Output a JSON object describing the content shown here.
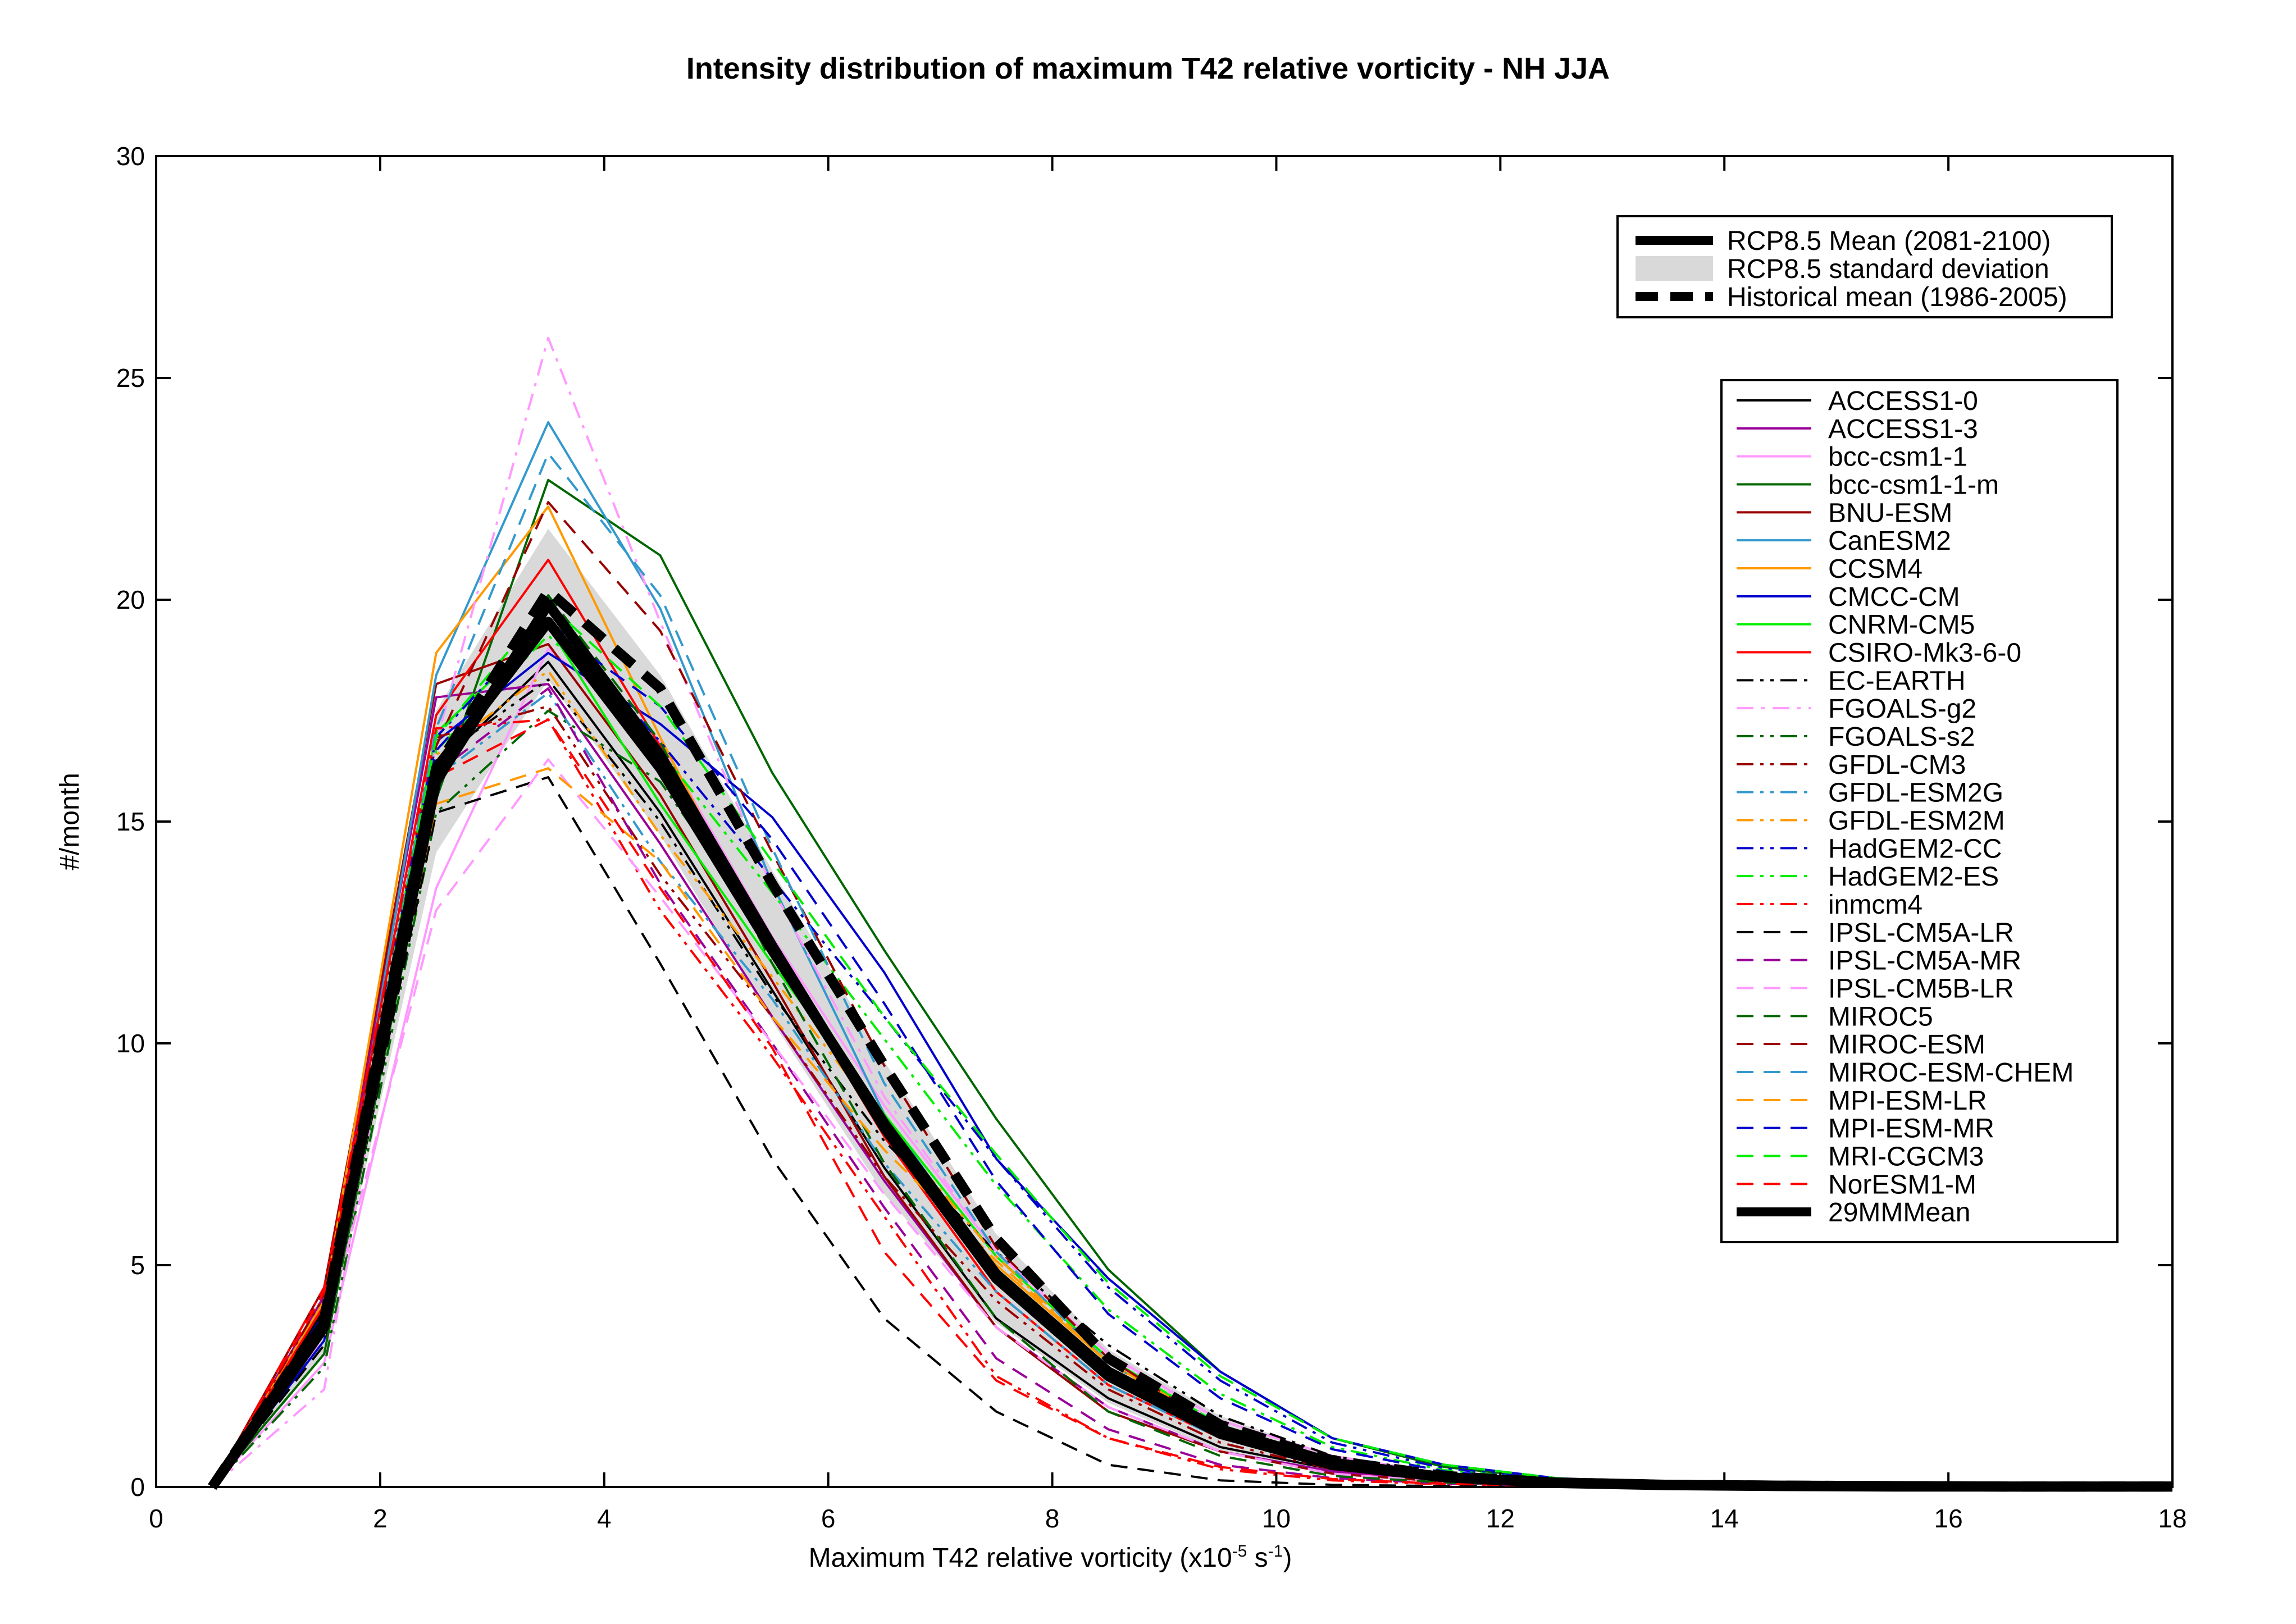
{
  "chart_data": {
    "type": "line",
    "title": "Intensity distribution of maximum T42 relative vorticity - NH JJA",
    "xlabel": {
      "main": "Maximum T42 relative vorticity (x10",
      "exp1": "-5",
      "mid": " s",
      "exp2": "-1",
      "end": ")"
    },
    "ylabel": "#/month",
    "xlim": [
      0,
      18
    ],
    "ylim": [
      0,
      30
    ],
    "xticks": [
      0,
      2,
      4,
      6,
      8,
      10,
      12,
      14,
      16,
      18
    ],
    "yticks": [
      0,
      5,
      10,
      15,
      20,
      25,
      30
    ],
    "grid": false,
    "legend_placement": "top-right",
    "x": [
      0.5,
      1.5,
      2.5,
      3.5,
      4.5,
      5.5,
      6.5,
      7.5,
      8.5,
      9.5,
      10.5,
      11.5,
      12.5,
      13.5,
      14.5,
      15.5,
      16.5,
      17.5,
      18
    ],
    "summary_legend": [
      {
        "name": "RCP8.5 Mean (2081-2100)",
        "kind": "line",
        "color": "#000000",
        "dash": "solid"
      },
      {
        "name": "RCP8.5 standard deviation",
        "kind": "band",
        "color": "#d9d9d9"
      },
      {
        "name": "Historical mean (1986-2005)",
        "kind": "line",
        "color": "#000000",
        "dash": "dashed"
      }
    ],
    "summary": {
      "rcp_mean": [
        0,
        3.7,
        15.9,
        19.9,
        16.5,
        12.2,
        8.1,
        4.7,
        2.5,
        1.2,
        0.5,
        0.22,
        0.1,
        0.05,
        0.03,
        0.02,
        0.01,
        0.01,
        0.01
      ],
      "rcp_sd_upper": [
        0,
        4.4,
        17.5,
        21.6,
        18.3,
        13.9,
        9.6,
        5.7,
        3.1,
        1.6,
        0.7,
        0.32,
        0.15,
        0.07,
        0.04,
        0.03,
        0.02,
        0.01,
        0.01
      ],
      "rcp_sd_lower": [
        0,
        3.0,
        14.3,
        18.2,
        14.7,
        10.5,
        6.6,
        3.7,
        1.9,
        0.8,
        0.3,
        0.12,
        0.05,
        0.03,
        0.02,
        0.01,
        0.0,
        0.0,
        0.0
      ],
      "hist_mean": [
        0,
        3.8,
        16.2,
        20.2,
        18.0,
        13.6,
        9.5,
        5.6,
        2.9,
        1.4,
        0.6,
        0.25,
        0.1,
        0.05,
        0.03,
        0.02,
        0.01,
        0.01,
        0.01
      ]
    },
    "series": [
      {
        "name": "ACCESS1-0",
        "color": "#000000",
        "dash": "solid",
        "values": [
          0,
          4.0,
          16.2,
          18.6,
          15.2,
          11.2,
          7.2,
          3.8,
          2.0,
          0.9,
          0.4,
          0.15,
          0.06,
          0.03,
          0.02,
          0.01,
          0,
          0,
          0
        ]
      },
      {
        "name": "ACCESS1-3",
        "color": "#990099",
        "dash": "solid",
        "values": [
          0,
          4.3,
          17.8,
          18.1,
          14.5,
          10.6,
          6.9,
          3.6,
          1.8,
          0.8,
          0.35,
          0.12,
          0.05,
          0.02,
          0.01,
          0.01,
          0,
          0,
          0
        ]
      },
      {
        "name": "bcc-csm1-1",
        "color": "#ff99ff",
        "dash": "solid",
        "values": [
          0,
          2.8,
          13.5,
          18.9,
          16.8,
          12.4,
          8.6,
          5.3,
          3.0,
          1.5,
          0.7,
          0.3,
          0.12,
          0.05,
          0.03,
          0.02,
          0.01,
          0.01,
          0.01
        ]
      },
      {
        "name": "bcc-csm1-1-m",
        "color": "#006600",
        "dash": "solid",
        "values": [
          0,
          3.0,
          15.5,
          22.7,
          21.0,
          16.1,
          12.1,
          8.3,
          4.9,
          2.6,
          1.1,
          0.45,
          0.18,
          0.08,
          0.04,
          0.02,
          0.01,
          0.01,
          0.01
        ]
      },
      {
        "name": "BNU-ESM",
        "color": "#990000",
        "dash": "solid",
        "values": [
          0,
          4.5,
          18.1,
          19.0,
          15.6,
          11.4,
          7.0,
          3.6,
          1.7,
          0.8,
          0.3,
          0.12,
          0.05,
          0.02,
          0.01,
          0.01,
          0,
          0,
          0
        ]
      },
      {
        "name": "CanESM2",
        "color": "#3399cc",
        "dash": "solid",
        "values": [
          0,
          3.5,
          18.3,
          24.0,
          19.8,
          13.6,
          8.4,
          4.9,
          2.6,
          1.2,
          0.5,
          0.2,
          0.08,
          0.04,
          0.02,
          0.01,
          0.01,
          0,
          0
        ]
      },
      {
        "name": "CCSM4",
        "color": "#ff9900",
        "dash": "solid",
        "values": [
          0,
          4.2,
          18.8,
          22.1,
          16.9,
          12.0,
          8.0,
          5.0,
          2.8,
          1.4,
          0.6,
          0.25,
          0.1,
          0.05,
          0.03,
          0.02,
          0.01,
          0.01,
          0.01
        ]
      },
      {
        "name": "CMCC-CM",
        "color": "#0000cc",
        "dash": "solid",
        "values": [
          0,
          3.3,
          16.8,
          18.8,
          17.2,
          15.1,
          11.6,
          7.4,
          4.7,
          2.6,
          1.1,
          0.5,
          0.2,
          0.08,
          0.04,
          0.02,
          0.01,
          0.01,
          0.01
        ]
      },
      {
        "name": "CNRM-CM5",
        "color": "#00ee00",
        "dash": "solid",
        "values": [
          0,
          3.8,
          17.0,
          19.4,
          15.4,
          11.8,
          8.4,
          5.2,
          2.9,
          1.4,
          0.6,
          0.25,
          0.1,
          0.05,
          0.03,
          0.02,
          0.01,
          0.01,
          0.01
        ]
      },
      {
        "name": "CSIRO-Mk3-6-0",
        "color": "#ff0000",
        "dash": "solid",
        "values": [
          0,
          4.1,
          17.4,
          20.9,
          16.7,
          12.1,
          7.9,
          4.4,
          2.3,
          1.1,
          0.45,
          0.18,
          0.07,
          0.03,
          0.02,
          0.01,
          0,
          0,
          0
        ]
      },
      {
        "name": "EC-EARTH",
        "color": "#000000",
        "dash": "dashdotdot",
        "values": [
          0,
          3.6,
          16.4,
          18.2,
          15.0,
          11.1,
          7.8,
          5.3,
          3.2,
          1.6,
          0.7,
          0.3,
          0.12,
          0.05,
          0.03,
          0.02,
          0.01,
          0.01,
          0.01
        ]
      },
      {
        "name": "FGOALS-g2",
        "color": "#ff99ff",
        "dash": "dashdot",
        "values": [
          0,
          2.2,
          16.8,
          25.9,
          19.5,
          13.5,
          8.8,
          5.3,
          3.0,
          1.4,
          0.6,
          0.25,
          0.1,
          0.05,
          0.03,
          0.02,
          0.01,
          0.01,
          0.01
        ]
      },
      {
        "name": "FGOALS-s2",
        "color": "#006600",
        "dash": "dashdotdot",
        "values": [
          0,
          2.7,
          15.2,
          17.5,
          15.9,
          12.3,
          8.0,
          4.6,
          2.5,
          1.2,
          0.5,
          0.2,
          0.08,
          0.04,
          0.02,
          0.01,
          0.01,
          0,
          0
        ]
      },
      {
        "name": "GFDL-CM3",
        "color": "#990000",
        "dash": "dashdotdot",
        "values": [
          0,
          4.3,
          16.9,
          17.6,
          13.8,
          10.6,
          7.0,
          4.2,
          2.2,
          1.0,
          0.4,
          0.15,
          0.06,
          0.03,
          0.02,
          0.01,
          0,
          0,
          0
        ]
      },
      {
        "name": "GFDL-ESM2G",
        "color": "#3399cc",
        "dash": "dashdotdot",
        "values": [
          0,
          3.5,
          16.0,
          17.9,
          14.1,
          11.0,
          7.3,
          4.4,
          2.3,
          1.1,
          0.45,
          0.18,
          0.07,
          0.03,
          0.02,
          0.01,
          0,
          0,
          0
        ]
      },
      {
        "name": "GFDL-ESM2M",
        "color": "#ff9900",
        "dash": "dashdotdot",
        "values": [
          0,
          3.7,
          16.5,
          18.4,
          14.7,
          11.5,
          8.2,
          5.2,
          2.8,
          1.3,
          0.55,
          0.22,
          0.09,
          0.04,
          0.02,
          0.01,
          0.01,
          0,
          0
        ]
      },
      {
        "name": "HadGEM2-CC",
        "color": "#0000cc",
        "dash": "dashdotdot",
        "values": [
          0,
          3.9,
          16.9,
          19.6,
          16.8,
          13.7,
          10.6,
          7.4,
          4.5,
          2.4,
          1.0,
          0.42,
          0.16,
          0.07,
          0.03,
          0.02,
          0.01,
          0.01,
          0.01
        ]
      },
      {
        "name": "HadGEM2-ES",
        "color": "#00ee00",
        "dash": "dashdotdot",
        "values": [
          0,
          3.8,
          16.6,
          19.2,
          16.6,
          13.4,
          10.1,
          6.8,
          4.0,
          2.1,
          0.9,
          0.38,
          0.15,
          0.06,
          0.03,
          0.02,
          0.01,
          0.01,
          0.01
        ]
      },
      {
        "name": "inmcm4",
        "color": "#ff0000",
        "dash": "dashdotdot",
        "values": [
          0,
          4.5,
          17.1,
          17.3,
          13.0,
          9.7,
          6.1,
          2.5,
          1.1,
          0.4,
          0.15,
          0.06,
          0.03,
          0.01,
          0.01,
          0,
          0,
          0,
          0
        ]
      },
      {
        "name": "IPSL-CM5A-LR",
        "color": "#000000",
        "dash": "dashed",
        "values": [
          0,
          3.2,
          15.2,
          16.0,
          11.8,
          7.4,
          3.8,
          1.7,
          0.5,
          0.15,
          0.05,
          0.02,
          0.01,
          0,
          0,
          0,
          0,
          0,
          0
        ]
      },
      {
        "name": "IPSL-CM5A-MR",
        "color": "#990099",
        "dash": "dashed",
        "values": [
          0,
          3.9,
          16.1,
          18.0,
          13.6,
          10.0,
          6.3,
          2.9,
          1.3,
          0.5,
          0.2,
          0.08,
          0.03,
          0.01,
          0.01,
          0,
          0,
          0,
          0
        ]
      },
      {
        "name": "IPSL-CM5B-LR",
        "color": "#ff99ff",
        "dash": "dashed",
        "values": [
          0,
          3.4,
          13.0,
          16.4,
          13.3,
          10.0,
          6.6,
          3.6,
          1.8,
          0.8,
          0.3,
          0.12,
          0.05,
          0.02,
          0.01,
          0.01,
          0,
          0,
          0
        ]
      },
      {
        "name": "MIROC5",
        "color": "#006600",
        "dash": "dashed",
        "values": [
          0,
          3.0,
          15.7,
          20.1,
          16.8,
          11.8,
          7.3,
          3.8,
          1.7,
          0.7,
          0.25,
          0.1,
          0.04,
          0.02,
          0.01,
          0,
          0,
          0,
          0
        ]
      },
      {
        "name": "MIROC-ESM",
        "color": "#990000",
        "dash": "dashed",
        "values": [
          0,
          3.8,
          16.7,
          22.2,
          19.3,
          14.3,
          9.5,
          5.4,
          2.9,
          1.3,
          0.55,
          0.22,
          0.09,
          0.04,
          0.02,
          0.01,
          0.01,
          0,
          0
        ]
      },
      {
        "name": "MIROC-ESM-CHEM",
        "color": "#3399cc",
        "dash": "dashed",
        "values": [
          0,
          3.6,
          17.1,
          23.3,
          20.1,
          14.4,
          9.1,
          5.3,
          2.8,
          1.3,
          0.55,
          0.22,
          0.09,
          0.04,
          0.02,
          0.01,
          0.01,
          0,
          0
        ]
      },
      {
        "name": "MPI-ESM-LR",
        "color": "#ff9900",
        "dash": "dashed",
        "values": [
          0,
          3.5,
          15.4,
          16.2,
          14.1,
          10.6,
          7.6,
          5.1,
          2.8,
          1.3,
          0.55,
          0.22,
          0.09,
          0.04,
          0.02,
          0.01,
          0.01,
          0,
          0
        ]
      },
      {
        "name": "MPI-ESM-MR",
        "color": "#0000cc",
        "dash": "dashed",
        "values": [
          0,
          3.9,
          16.6,
          19.4,
          17.6,
          14.6,
          10.9,
          6.9,
          3.9,
          2.0,
          0.85,
          0.35,
          0.14,
          0.06,
          0.03,
          0.02,
          0.01,
          0.01,
          0.01
        ]
      },
      {
        "name": "MRI-CGCM3",
        "color": "#00ee00",
        "dash": "dashed",
        "values": [
          0,
          3.7,
          16.9,
          19.9,
          17.6,
          14.1,
          10.6,
          7.5,
          4.6,
          2.5,
          1.1,
          0.5,
          0.2,
          0.08,
          0.04,
          0.02,
          0.01,
          0.01,
          0.01
        ]
      },
      {
        "name": "NorESM1-M",
        "color": "#ff0000",
        "dash": "dashed",
        "values": [
          0,
          4.4,
          16.0,
          17.3,
          13.5,
          9.9,
          5.3,
          2.4,
          1.1,
          0.45,
          0.18,
          0.07,
          0.03,
          0.01,
          0.01,
          0,
          0,
          0,
          0
        ]
      },
      {
        "name": "29MMMean",
        "color": "#000000",
        "dash": "solid",
        "thick": true,
        "values": [
          0,
          3.6,
          16.2,
          19.5,
          16.2,
          12.1,
          8.2,
          4.8,
          2.6,
          1.3,
          0.55,
          0.22,
          0.09,
          0.04,
          0.02,
          0.01,
          0.01,
          0.01,
          0.01
        ]
      }
    ]
  }
}
